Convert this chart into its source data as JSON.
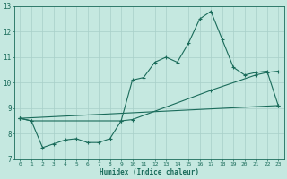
{
  "xlabel": "Humidex (Indice chaleur)",
  "bg_color": "#c5e8e0",
  "grid_color": "#a8cfc8",
  "line_color": "#1a6b5a",
  "xlim": [
    -0.5,
    23.5
  ],
  "ylim": [
    7,
    13
  ],
  "xticks": [
    0,
    1,
    2,
    3,
    4,
    5,
    6,
    7,
    8,
    9,
    10,
    11,
    12,
    13,
    14,
    15,
    16,
    17,
    18,
    19,
    20,
    21,
    22,
    23
  ],
  "yticks": [
    7,
    8,
    9,
    10,
    11,
    12,
    13
  ],
  "line1_x": [
    0,
    1,
    2,
    3,
    4,
    5,
    6,
    7,
    8,
    9,
    10,
    11,
    12,
    13,
    14,
    15,
    16,
    17,
    18,
    19,
    20,
    21,
    22,
    23
  ],
  "line1_y": [
    8.6,
    8.5,
    7.45,
    7.6,
    7.75,
    7.8,
    7.65,
    7.65,
    7.8,
    8.5,
    10.1,
    10.2,
    10.8,
    11.0,
    10.8,
    11.55,
    12.5,
    12.8,
    11.7,
    10.6,
    10.3,
    10.4,
    10.45,
    9.1
  ],
  "line2_x": [
    0,
    1,
    9,
    10,
    17,
    21,
    22,
    23
  ],
  "line2_y": [
    8.6,
    8.5,
    8.5,
    8.55,
    9.7,
    10.3,
    10.4,
    10.45
  ],
  "line3_x": [
    0,
    23
  ],
  "line3_y": [
    8.6,
    9.1
  ]
}
